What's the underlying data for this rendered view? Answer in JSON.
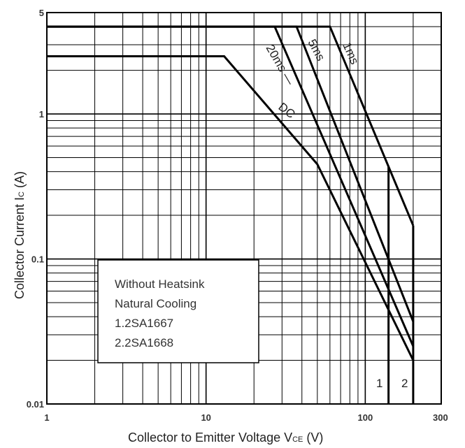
{
  "chart_data": {
    "type": "line",
    "title": "",
    "xlabel": "Collector to Emitter Voltage  VCE  (V)",
    "xlabel_parts": {
      "main": "Collector to Emitter Voltage  V",
      "sub": "CE",
      "unit": "  (V)"
    },
    "ylabel": "Collector Current  IC  (A)",
    "ylabel_parts": {
      "main": "Collector Current  I",
      "sub": "C",
      "unit": "  (A)"
    },
    "x_scale": "log",
    "y_scale": "log",
    "xlim": [
      1,
      300
    ],
    "ylim": [
      0.01,
      5
    ],
    "x_ticks": [
      {
        "value": 1,
        "label": "1"
      },
      {
        "value": 10,
        "label": "10"
      },
      {
        "value": 100,
        "label": "100"
      },
      {
        "value": 300,
        "label": "300"
      }
    ],
    "y_ticks": [
      {
        "value": 5,
        "label": "5"
      },
      {
        "value": 1,
        "label": "1"
      },
      {
        "value": 0.1,
        "label": "0.1"
      },
      {
        "value": 0.01,
        "label": "0.01"
      }
    ],
    "grid": true,
    "series": [
      {
        "name": "DC",
        "points": [
          [
            1,
            2.5
          ],
          [
            13,
            2.5
          ],
          [
            50,
            0.45
          ],
          [
            200,
            0.02
          ]
        ]
      },
      {
        "name": "20ms",
        "points": [
          [
            1,
            4
          ],
          [
            27,
            4
          ],
          [
            200,
            0.025
          ]
        ]
      },
      {
        "name": "5ms",
        "points": [
          [
            1,
            4
          ],
          [
            37,
            4
          ],
          [
            200,
            0.037
          ]
        ]
      },
      {
        "name": "1ms",
        "points": [
          [
            1,
            4
          ],
          [
            60,
            4
          ],
          [
            200,
            0.17
          ]
        ]
      }
    ],
    "limit_lines": [
      {
        "name": "1",
        "x": 140
      },
      {
        "name": "2",
        "x": 200
      }
    ],
    "annotations": [
      {
        "text": "1ms",
        "series": "1ms"
      },
      {
        "text": "5ms",
        "series": "5ms"
      },
      {
        "text": "20ms —",
        "series": "20ms"
      },
      {
        "text": "DC",
        "series": "DC"
      }
    ],
    "notes_box": [
      "Without Heatsink",
      "Natural Cooling",
      "1.2SA1667",
      "2.2SA1668"
    ]
  }
}
